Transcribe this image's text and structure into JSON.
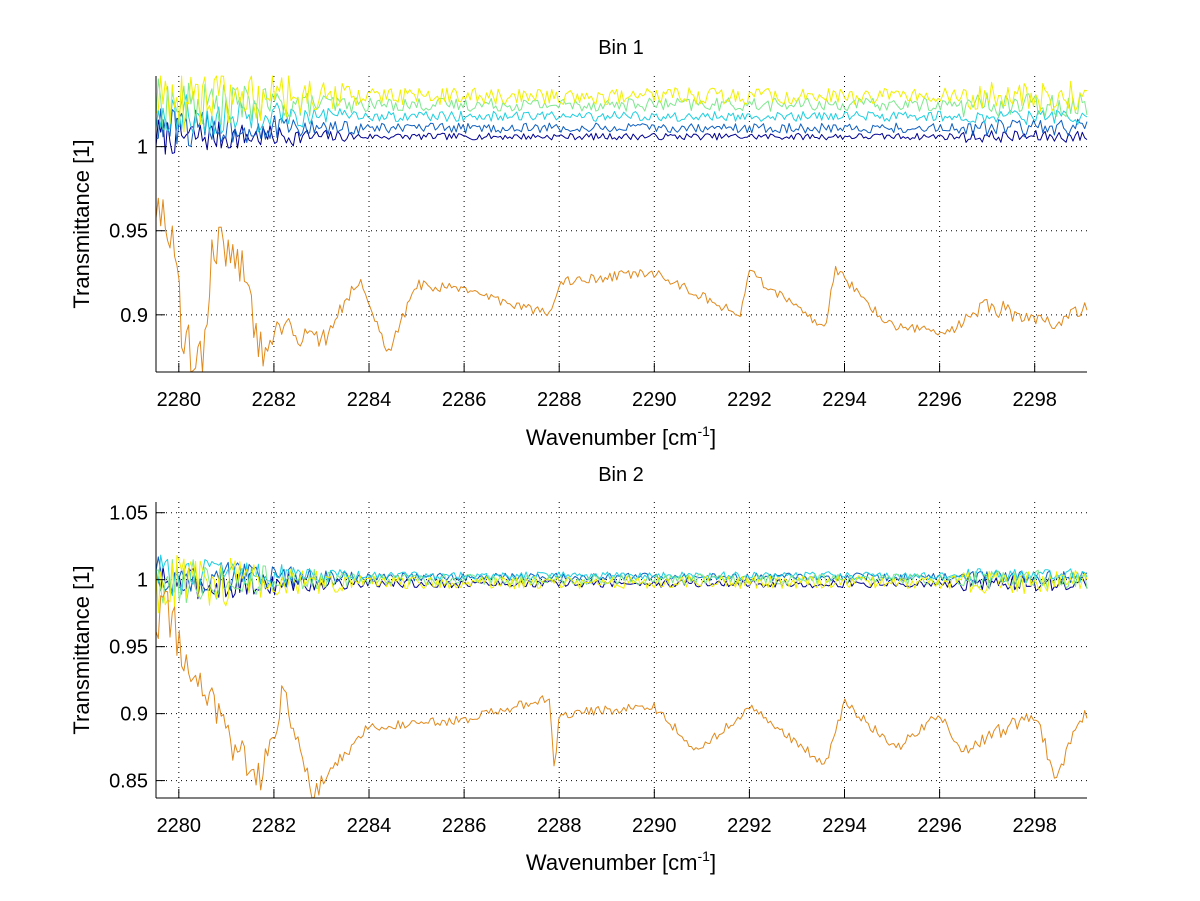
{
  "chart_data": [
    {
      "type": "line",
      "title": "Bin 1",
      "xlabel": "Wavenumber [cm",
      "xlabel_sup": "-1",
      "xlabel_end": "]",
      "ylabel": "Transmittance [1]",
      "xlim": [
        2279.52,
        2299.1
      ],
      "ylim": [
        0.866,
        1.042
      ],
      "grid": true,
      "xticks": [
        2280,
        2282,
        2284,
        2286,
        2288,
        2290,
        2292,
        2294,
        2296,
        2298
      ],
      "xtick_labels": [
        "2280",
        "2282",
        "2284",
        "2286",
        "2288",
        "2290",
        "2292",
        "2294",
        "2296",
        "2298"
      ],
      "yticks": [
        0.9,
        0.95,
        1
      ],
      "ytick_labels": [
        "0.9",
        "0.95",
        "1"
      ],
      "series": [
        {
          "name": "series-1",
          "color": "#00008f",
          "baseline": 1.006,
          "noise_early": 0.012,
          "noise_late": 0.002,
          "dip_scale": 0.0
        },
        {
          "name": "series-2",
          "color": "#0f5fbf",
          "baseline": 1.011,
          "noise_early": 0.013,
          "noise_late": 0.003,
          "dip_scale": 0.0
        },
        {
          "name": "series-3",
          "color": "#1fcfdf",
          "baseline": 1.018,
          "noise_early": 0.015,
          "noise_late": 0.003,
          "dip_scale": 0.0
        },
        {
          "name": "series-4",
          "color": "#7fe88f",
          "baseline": 1.025,
          "noise_early": 0.016,
          "noise_late": 0.004,
          "dip_scale": 0.0
        },
        {
          "name": "series-5",
          "color": "#f0f000",
          "baseline": 1.03,
          "noise_early": 0.025,
          "noise_late": 0.005,
          "dip_scale": 0.0
        },
        {
          "name": "series-6",
          "color": "#e08a1e",
          "baseline": 0.915,
          "noise_early": 0.03,
          "noise_late": 0.005,
          "dip_scale": 0.025
        }
      ],
      "approx_points": {
        "series-6": [
          [
            2279.5,
            0.965
          ],
          [
            2279.9,
            0.95
          ],
          [
            2280.05,
            0.89
          ],
          [
            2280.5,
            0.87
          ],
          [
            2280.7,
            0.945
          ],
          [
            2281.3,
            0.93
          ],
          [
            2281.8,
            0.87
          ],
          [
            2282.0,
            0.895
          ],
          [
            2283.0,
            0.883
          ],
          [
            2283.8,
            0.922
          ],
          [
            2284.4,
            0.877
          ],
          [
            2285.0,
            0.918
          ],
          [
            2286.0,
            0.915
          ],
          [
            2287.8,
            0.9
          ],
          [
            2288.0,
            0.92
          ],
          [
            2290.0,
            0.925
          ],
          [
            2291.8,
            0.9
          ],
          [
            2292.0,
            0.925
          ],
          [
            2293.6,
            0.892
          ],
          [
            2293.8,
            0.928
          ],
          [
            2294.9,
            0.894
          ],
          [
            2296.2,
            0.89
          ],
          [
            2297.0,
            0.905
          ],
          [
            2298.5,
            0.895
          ],
          [
            2299.1,
            0.905
          ]
        ]
      }
    },
    {
      "type": "line",
      "title": "Bin 2",
      "xlabel": "Wavenumber [cm",
      "xlabel_sup": "-1",
      "xlabel_end": "]",
      "ylabel": "Transmittance [1]",
      "xlim": [
        2279.52,
        2299.1
      ],
      "ylim": [
        0.837,
        1.058
      ],
      "grid": true,
      "xticks": [
        2280,
        2282,
        2284,
        2286,
        2288,
        2290,
        2292,
        2294,
        2296,
        2298
      ],
      "xtick_labels": [
        "2280",
        "2282",
        "2284",
        "2286",
        "2288",
        "2290",
        "2292",
        "2294",
        "2296",
        "2298"
      ],
      "yticks": [
        0.85,
        0.9,
        0.95,
        1,
        1.05
      ],
      "ytick_labels": [
        "0.85",
        "0.9",
        "0.95",
        "1",
        "1.05"
      ],
      "series": [
        {
          "name": "series-1",
          "color": "#00008f",
          "baseline": 0.997,
          "noise_early": 0.015,
          "noise_late": 0.003,
          "dip_scale": 0.0
        },
        {
          "name": "series-2",
          "color": "#0f5fbf",
          "baseline": 1.002,
          "noise_early": 0.016,
          "noise_late": 0.003,
          "dip_scale": 0.0
        },
        {
          "name": "series-3",
          "color": "#1fcfdf",
          "baseline": 1.003,
          "noise_early": 0.016,
          "noise_late": 0.003,
          "dip_scale": 0.0
        },
        {
          "name": "series-4",
          "color": "#7fe88f",
          "baseline": 1.0,
          "noise_early": 0.02,
          "noise_late": 0.004,
          "dip_scale": 0.0
        },
        {
          "name": "series-5",
          "color": "#f0f000",
          "baseline": 0.998,
          "noise_early": 0.025,
          "noise_late": 0.005,
          "dip_scale": 0.0
        },
        {
          "name": "series-6",
          "color": "#e08a1e",
          "baseline": 0.9,
          "noise_early": 0.035,
          "noise_late": 0.006,
          "dip_scale": 0.035
        }
      ],
      "approx_points": {
        "series-6": [
          [
            2279.5,
            0.95
          ],
          [
            2279.7,
            0.98
          ],
          [
            2280.5,
            0.92
          ],
          [
            2281.0,
            0.88
          ],
          [
            2281.7,
            0.85
          ],
          [
            2282.2,
            0.915
          ],
          [
            2282.8,
            0.84
          ],
          [
            2283.5,
            0.87
          ],
          [
            2284.0,
            0.89
          ],
          [
            2286.0,
            0.895
          ],
          [
            2287.8,
            0.912
          ],
          [
            2287.9,
            0.857
          ],
          [
            2288.0,
            0.9
          ],
          [
            2290.0,
            0.905
          ],
          [
            2290.9,
            0.872
          ],
          [
            2292.0,
            0.905
          ],
          [
            2293.6,
            0.862
          ],
          [
            2294.0,
            0.908
          ],
          [
            2295.1,
            0.874
          ],
          [
            2296.0,
            0.9
          ],
          [
            2296.5,
            0.87
          ],
          [
            2298.0,
            0.902
          ],
          [
            2298.4,
            0.853
          ],
          [
            2299.1,
            0.9
          ]
        ]
      }
    }
  ]
}
